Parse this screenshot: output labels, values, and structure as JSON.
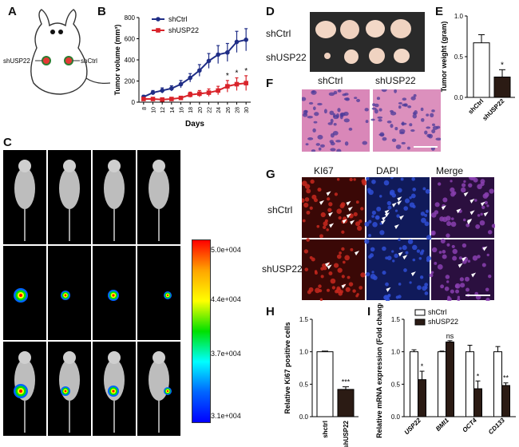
{
  "panels": {
    "A": {
      "label": "A",
      "left_label": "shUSP22",
      "right_label": "shCtrl"
    },
    "B": {
      "label": "B",
      "legend": [
        "shCtrl",
        "shUSP22"
      ],
      "significance": [
        "*",
        "*",
        "*"
      ]
    },
    "C": {
      "label": "C",
      "colorbar_ticks": [
        "5.0e+004",
        "4.4e+004",
        "3.7e+004",
        "3.1e+004"
      ]
    },
    "D": {
      "label": "D",
      "row_labels": [
        "shCtrl",
        "shUSP22"
      ]
    },
    "E": {
      "label": "E",
      "significance": "*"
    },
    "F": {
      "label": "F",
      "column_labels": [
        "shCtrl",
        "shUSP22"
      ]
    },
    "G": {
      "label": "G",
      "column_labels": [
        "KI67",
        "DAPI",
        "Merge"
      ],
      "row_labels": [
        "shCtrl",
        "shUSP22"
      ]
    },
    "H": {
      "label": "H",
      "significance": "***"
    },
    "I": {
      "label": "I",
      "legend": [
        "shCtrl",
        "shUSP22"
      ],
      "significance": [
        "*",
        "ns",
        "*",
        "**"
      ]
    }
  },
  "colors": {
    "ctrl_line": "#1f2d86",
    "usp22_line": "#d9232a",
    "bar_fill_dark": "#2b1b14",
    "he_pink": "#d987b8",
    "ki67_red": "#c8281e",
    "dapi_blue": "#2f4fd6"
  },
  "chart_data": [
    {
      "panel": "B",
      "type": "line",
      "xlabel": "Days",
      "ylabel": "Tumor volume (mm³)",
      "x": [
        8,
        10,
        12,
        14,
        16,
        18,
        20,
        22,
        24,
        26,
        28,
        30
      ],
      "ylim": [
        0,
        800
      ],
      "yticks": [
        0,
        200,
        400,
        600,
        800
      ],
      "series": [
        {
          "name": "shCtrl",
          "values": [
            50,
            90,
            110,
            130,
            170,
            230,
            300,
            390,
            450,
            470,
            570,
            590
          ],
          "errors": [
            15,
            20,
            25,
            25,
            35,
            40,
            55,
            70,
            85,
            85,
            100,
            105
          ]
        },
        {
          "name": "shUSP22",
          "values": [
            30,
            30,
            25,
            30,
            40,
            70,
            80,
            90,
            110,
            150,
            170,
            180
          ],
          "errors": [
            10,
            10,
            10,
            10,
            15,
            25,
            30,
            35,
            40,
            55,
            60,
            70
          ]
        }
      ]
    },
    {
      "panel": "E",
      "type": "bar",
      "ylabel": "Tumor weight (gram)",
      "categories": [
        "shCtrl",
        "shUSP22"
      ],
      "values": [
        0.67,
        0.25
      ],
      "errors": [
        0.1,
        0.09
      ],
      "ylim": [
        0,
        1.0
      ],
      "yticks": [
        0.0,
        0.5,
        1.0
      ]
    },
    {
      "panel": "H",
      "type": "bar",
      "ylabel": "Relative Ki67 positive cells",
      "categories": [
        "shctrl",
        "shUSP22"
      ],
      "values": [
        1.0,
        0.42
      ],
      "errors": [
        0.01,
        0.04
      ],
      "ylim": [
        0,
        1.5
      ],
      "yticks": [
        0.0,
        0.5,
        1.0,
        1.5
      ]
    },
    {
      "panel": "I",
      "type": "bar",
      "ylabel": "Relative mRNA expression (Fold change)",
      "categories": [
        "USP22",
        "BMI1",
        "OCT4",
        "CD133"
      ],
      "ylim": [
        0,
        1.5
      ],
      "yticks": [
        0.0,
        0.5,
        1.0,
        1.5
      ],
      "series": [
        {
          "name": "shCtrl",
          "values": [
            1.0,
            1.0,
            1.0,
            1.0
          ],
          "errors": [
            0.03,
            0.01,
            0.1,
            0.08
          ]
        },
        {
          "name": "shUSP22",
          "values": [
            0.57,
            1.15,
            0.43,
            0.48
          ],
          "errors": [
            0.13,
            0.02,
            0.12,
            0.04
          ]
        }
      ]
    }
  ]
}
